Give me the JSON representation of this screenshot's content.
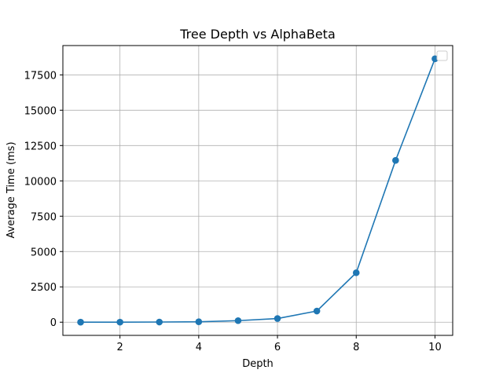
{
  "chart_data": {
    "type": "line",
    "title": "Tree Depth vs AlphaBeta",
    "xlabel": "Depth",
    "ylabel": "Average Time (ms)",
    "xlim": [
      0.55,
      10.45
    ],
    "ylim": [
      -932,
      19574
    ],
    "xticks": [
      2,
      4,
      6,
      8,
      10
    ],
    "yticks": [
      0,
      2500,
      5000,
      7500,
      10000,
      12500,
      15000,
      17500
    ],
    "grid": true,
    "legend": "top-right",
    "series": [
      {
        "color": "#1f77b4",
        "marker": "circle",
        "x": [
          1,
          2,
          3,
          4,
          5,
          6,
          7,
          8,
          9,
          10
        ],
        "y": [
          1,
          5,
          12,
          30,
          110,
          260,
          790,
          3500,
          11450,
          18640
        ]
      }
    ]
  }
}
